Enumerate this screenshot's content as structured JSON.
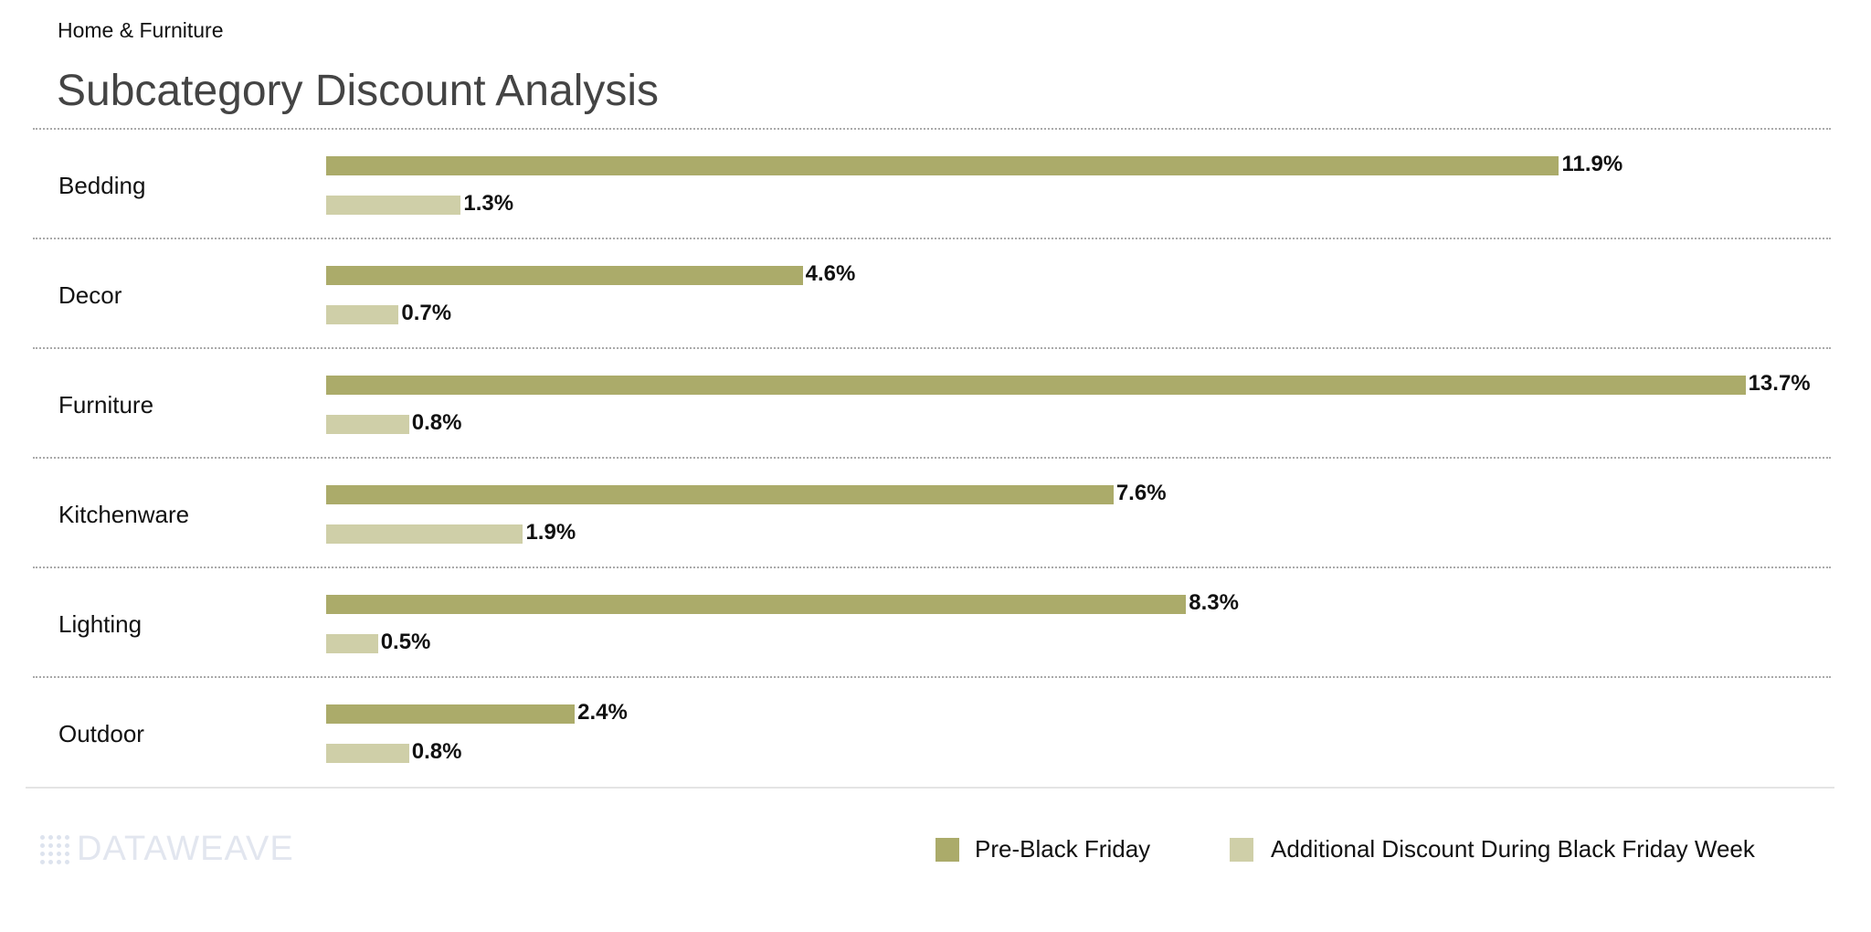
{
  "header": {
    "subtitle": "Home & Furniture",
    "title": "Subcategory Discount Analysis"
  },
  "chart_data": {
    "type": "bar",
    "orientation": "horizontal",
    "title": "Subcategory Discount Analysis",
    "categories": [
      "Bedding",
      "Decor",
      "Furniture",
      "Kitchenware",
      "Lighting",
      "Outdoor"
    ],
    "series": [
      {
        "name": "Pre-Black Friday",
        "color": "#abab6a",
        "values": [
          11.9,
          4.6,
          13.7,
          7.6,
          8.3,
          2.4
        ],
        "labels": [
          "11.9%",
          "4.6%",
          "13.7%",
          "7.6%",
          "8.3%",
          "2.4%"
        ]
      },
      {
        "name": "Additional Discount During Black Friday Week",
        "color": "#cfcfa8",
        "values": [
          1.3,
          0.7,
          0.8,
          1.9,
          0.5,
          0.8
        ],
        "labels": [
          "1.3%",
          "0.7%",
          "0.8%",
          "1.9%",
          "0.5%",
          "0.8%"
        ]
      }
    ],
    "unit": "%",
    "legend": "bottom-right",
    "grid": false
  },
  "legend": {
    "items": [
      "Pre-Black Friday",
      "Additional Discount During Black Friday Week"
    ]
  },
  "logo": {
    "text": "DATAWEAVE"
  }
}
